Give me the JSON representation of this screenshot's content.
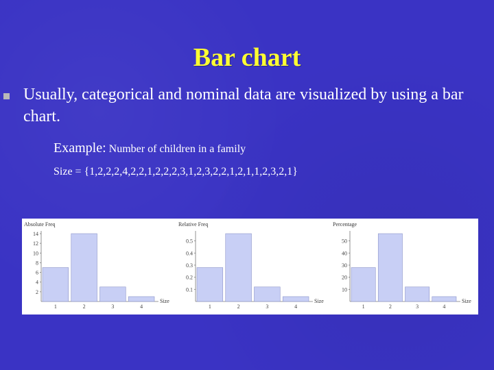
{
  "slide": {
    "title": "Bar chart",
    "bullet": "Usually, categorical and nominal data are visualized by using a bar chart.",
    "example_label": "Example:",
    "example_text": "Number of children in a family",
    "size_set": "Size = {1,2,2,2,4,2,2,1,2,2,2,3,1,2,3,2,2,1,2,1,1,2,3,2,1}"
  },
  "colors": {
    "background": "#3a33c4",
    "title": "#ffff33",
    "text": "#ffffff",
    "bar_fill": "#c8cff5"
  },
  "chart_data": [
    {
      "type": "bar",
      "ylabel": "Absolute Freq",
      "xlabel": "Size",
      "categories": [
        "1",
        "2",
        "3",
        "4"
      ],
      "values": [
        7,
        14,
        3,
        1
      ],
      "ylim": [
        0,
        14
      ],
      "yticks": [
        2,
        4,
        6,
        8,
        10,
        12,
        14
      ]
    },
    {
      "type": "bar",
      "ylabel": "Relative Freq",
      "xlabel": "Size",
      "categories": [
        "1",
        "2",
        "3",
        "4"
      ],
      "values": [
        0.28,
        0.56,
        0.12,
        0.04
      ],
      "ylim": [
        0,
        0.56
      ],
      "yticks": [
        0.1,
        0.2,
        0.3,
        0.4,
        0.5
      ]
    },
    {
      "type": "bar",
      "ylabel": "Percentage",
      "xlabel": "Size",
      "categories": [
        "1",
        "2",
        "3",
        "4"
      ],
      "values": [
        28,
        56,
        12,
        4
      ],
      "ylim": [
        0,
        56
      ],
      "yticks": [
        10,
        20,
        30,
        40,
        50
      ]
    }
  ]
}
